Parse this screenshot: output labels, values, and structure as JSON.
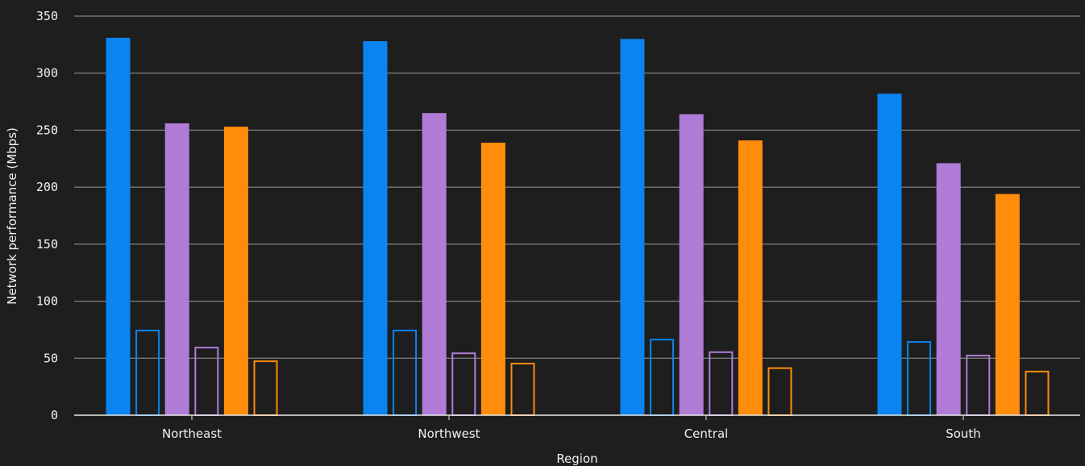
{
  "chart_data": {
    "type": "bar",
    "xlabel": "Region",
    "ylabel": "Network performance (Mbps)",
    "categories": [
      "Northeast",
      "Northwest",
      "Central",
      "South"
    ],
    "ylim": [
      0,
      350
    ],
    "yticks": [
      0,
      50,
      100,
      150,
      200,
      250,
      300,
      350
    ],
    "grid": true,
    "legend": "none",
    "series": [
      {
        "color": "#0a84f0",
        "style": "filled",
        "values": [
          331,
          328,
          330,
          282
        ]
      },
      {
        "color": "#0a84f0",
        "style": "outline",
        "values": [
          75,
          75,
          67,
          65
        ]
      },
      {
        "color": "#b07cd8",
        "style": "filled",
        "values": [
          256,
          265,
          264,
          221
        ]
      },
      {
        "color": "#b07cd8",
        "style": "outline",
        "values": [
          60,
          55,
          56,
          53
        ]
      },
      {
        "color": "#ff8c0a",
        "style": "filled",
        "values": [
          253,
          239,
          241,
          194
        ]
      },
      {
        "color": "#ff8c0a",
        "style": "outline",
        "values": [
          48,
          46,
          42,
          39
        ]
      }
    ]
  }
}
